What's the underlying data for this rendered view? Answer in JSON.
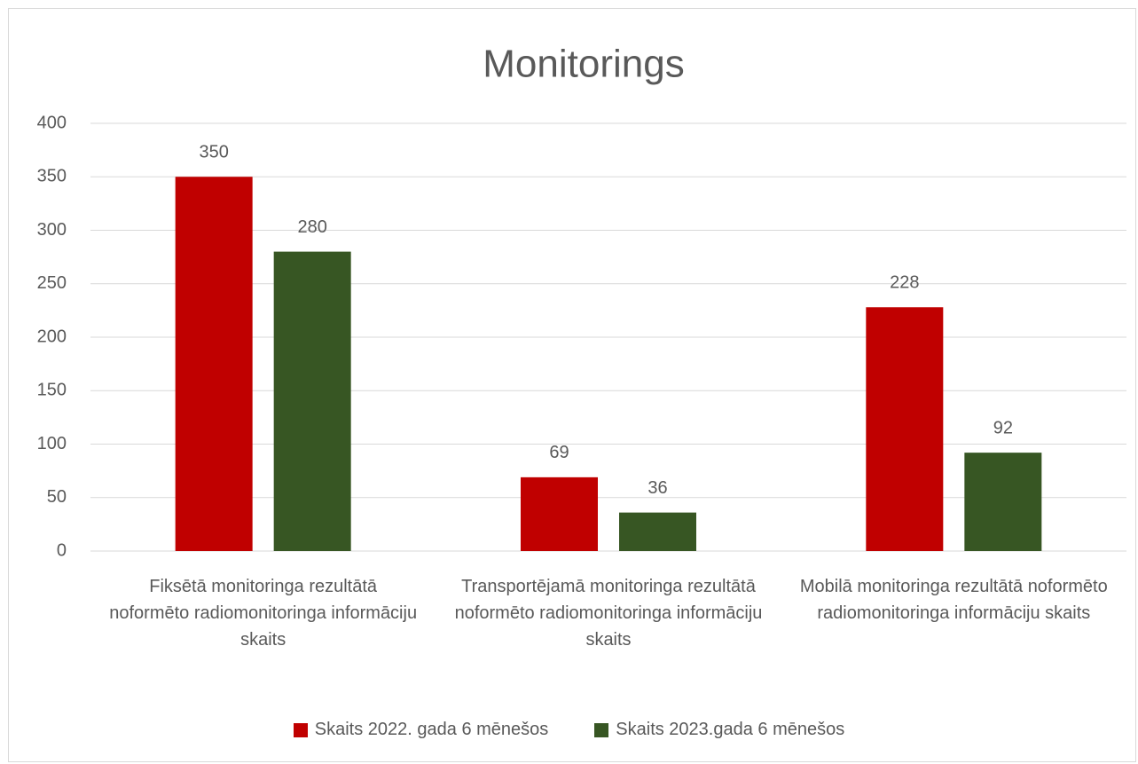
{
  "chart_data": {
    "type": "bar",
    "title": "Monitorings",
    "categories": [
      "Fiksētā monitoringa rezultātā noformēto radiomonitoringa informāciju skaits",
      "Transportējamā monitoringa rezultātā noformēto radiomonitoringa informāciju skaits",
      "Mobilā monitoringa rezultātā noformēto radiomonitoringa informāciju skaits"
    ],
    "series": [
      {
        "name": "Skaits 2022. gada 6 mēnešos",
        "color": "#c00000",
        "values": [
          350,
          69,
          228
        ]
      },
      {
        "name": "Skaits 2023.gada 6 mēnešos",
        "color": "#375623",
        "values": [
          280,
          36,
          92
        ]
      }
    ],
    "ylim": [
      0,
      400
    ],
    "yticks": [
      0,
      50,
      100,
      150,
      200,
      250,
      300,
      350,
      400
    ],
    "grid": true,
    "legend": "bottom"
  }
}
